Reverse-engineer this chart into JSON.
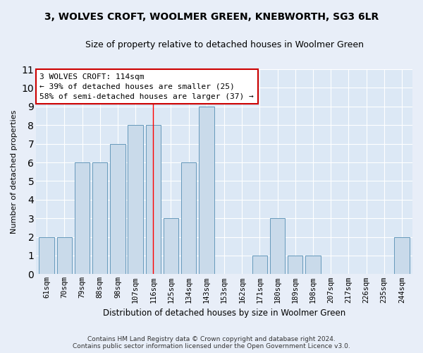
{
  "title": "3, WOLVES CROFT, WOOLMER GREEN, KNEBWORTH, SG3 6LR",
  "subtitle": "Size of property relative to detached houses in Woolmer Green",
  "xlabel": "Distribution of detached houses by size in Woolmer Green",
  "ylabel": "Number of detached properties",
  "categories": [
    "61sqm",
    "70sqm",
    "79sqm",
    "88sqm",
    "98sqm",
    "107sqm",
    "116sqm",
    "125sqm",
    "134sqm",
    "143sqm",
    "153sqm",
    "162sqm",
    "171sqm",
    "180sqm",
    "189sqm",
    "198sqm",
    "207sqm",
    "217sqm",
    "226sqm",
    "235sqm",
    "244sqm"
  ],
  "values": [
    2,
    2,
    6,
    6,
    7,
    8,
    8,
    3,
    6,
    9,
    0,
    0,
    1,
    3,
    1,
    1,
    0,
    0,
    0,
    0,
    2
  ],
  "bar_color": "#c9daea",
  "bar_edge_color": "#6699bb",
  "red_line_index": 6,
  "annotation_text": "3 WOLVES CROFT: 114sqm\n← 39% of detached houses are smaller (25)\n58% of semi-detached houses are larger (37) →",
  "annotation_box_color": "#ffffff",
  "annotation_box_edge": "#cc0000",
  "ylim": [
    0,
    11
  ],
  "yticks": [
    0,
    1,
    2,
    3,
    4,
    5,
    6,
    7,
    8,
    9,
    10,
    11
  ],
  "footer": "Contains HM Land Registry data © Crown copyright and database right 2024.\nContains public sector information licensed under the Open Government Licence v3.0.",
  "bg_color": "#e8eef8",
  "plot_bg_color": "#dce8f5",
  "title_fontsize": 10,
  "subtitle_fontsize": 9
}
